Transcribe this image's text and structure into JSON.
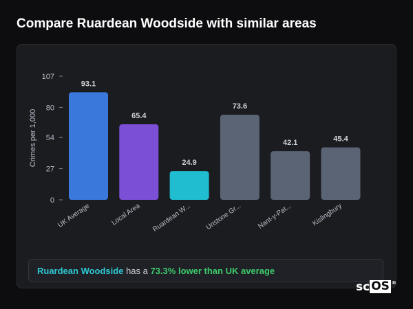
{
  "page": {
    "title": "Compare Ruardean Woodside with similar areas"
  },
  "chart_data": {
    "type": "bar",
    "categories": [
      "UK Average",
      "Local Area",
      "Ruardean W...",
      "Unstone Gr...",
      "Nant-y-Pat...",
      "Kislingbury"
    ],
    "values": [
      93.1,
      65.4,
      24.9,
      73.6,
      42.1,
      45.4
    ],
    "data_labels": [
      "93.1",
      "65.4",
      "24.9",
      "73.6",
      "42.1",
      "45.4"
    ],
    "colors": [
      "#3a78dc",
      "#7b4fd6",
      "#20bcd0",
      "#5b6474",
      "#5b6474",
      "#5b6474"
    ],
    "ylabel": "Crimes per 1,000",
    "yticks": [
      0,
      27,
      54,
      80,
      107
    ],
    "ylim": [
      0,
      107
    ],
    "grid": false,
    "legend": "none"
  },
  "callout": {
    "place": "Ruardean Woodside",
    "middle": " has a ",
    "diff": "73.3% lower than UK average"
  },
  "logo": {
    "sc": "sc",
    "os": "OS",
    "reg": "®"
  }
}
